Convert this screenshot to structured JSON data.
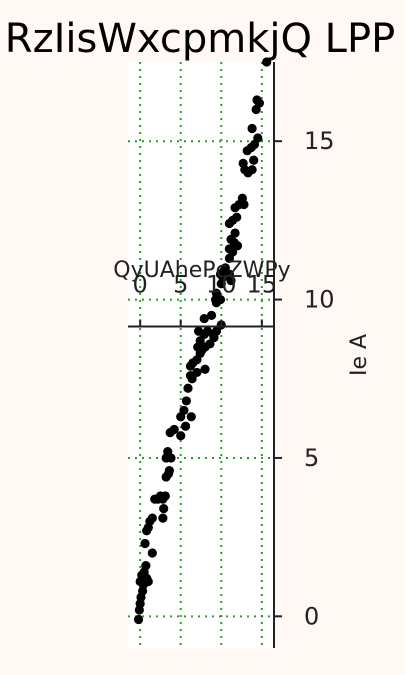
{
  "chart_data": {
    "type": "scatter",
    "title": "RzIisWxcpmkjQ LPP",
    "xlabel": "QyUAhePcZWPy",
    "ylabel": "Ie A",
    "xlim": [
      -1.5,
      16.5
    ],
    "ylim": [
      -1.0,
      17.5
    ],
    "x_ticks": [
      0,
      5,
      10,
      15
    ],
    "y_ticks": [
      0,
      5,
      10,
      15
    ],
    "x_tick_labels": [
      "0",
      "5",
      "10",
      "15"
    ],
    "y_tick_labels": [
      "0",
      "5",
      "10",
      "15"
    ],
    "x_axis_position": "top-inside",
    "y_axis_position": "right",
    "x_axis_at_y": 9.15,
    "grid": true,
    "grid_color": "#2a9d2a",
    "marker_color": "#000000",
    "background": "#fff8f5",
    "points": [
      [
        -0.2,
        -0.1
      ],
      [
        -0.1,
        0.2
      ],
      [
        0.0,
        0.4
      ],
      [
        0.1,
        0.6
      ],
      [
        0.3,
        0.8
      ],
      [
        0.0,
        1.1
      ],
      [
        0.4,
        1.0
      ],
      [
        0.8,
        1.2
      ],
      [
        0.5,
        1.4
      ],
      [
        0.2,
        1.3
      ],
      [
        0.7,
        1.6
      ],
      [
        1.0,
        1.1
      ],
      [
        0.6,
        2.3
      ],
      [
        1.5,
        2.0
      ],
      [
        1.0,
        2.8
      ],
      [
        0.8,
        2.7
      ],
      [
        1.2,
        3.0
      ],
      [
        1.5,
        3.1
      ],
      [
        1.8,
        3.7
      ],
      [
        2.2,
        3.7
      ],
      [
        2.8,
        3.7
      ],
      [
        2.5,
        3.8
      ],
      [
        2.9,
        3.4
      ],
      [
        2.8,
        3.1
      ],
      [
        3.1,
        3.8
      ],
      [
        3.2,
        4.4
      ],
      [
        3.5,
        4.5
      ],
      [
        3.6,
        4.6
      ],
      [
        3.2,
        5.0
      ],
      [
        3.8,
        5.0
      ],
      [
        3.4,
        5.2
      ],
      [
        3.7,
        5.8
      ],
      [
        4.2,
        5.9
      ],
      [
        5.0,
        5.7
      ],
      [
        5.6,
        6.0
      ],
      [
        5.0,
        6.3
      ],
      [
        5.4,
        6.5
      ],
      [
        5.7,
        6.8
      ],
      [
        6.3,
        6.3
      ],
      [
        5.9,
        7.2
      ],
      [
        6.2,
        7.6
      ],
      [
        6.4,
        7.5
      ],
      [
        7.0,
        7.7
      ],
      [
        6.2,
        7.9
      ],
      [
        6.5,
        8.0
      ],
      [
        7.0,
        8.1
      ],
      [
        7.4,
        8.3
      ],
      [
        7.1,
        8.5
      ],
      [
        7.6,
        8.4
      ],
      [
        8.0,
        7.8
      ],
      [
        7.4,
        8.7
      ],
      [
        8.0,
        8.5
      ],
      [
        7.9,
        8.9
      ],
      [
        7.2,
        9.0
      ],
      [
        8.6,
        8.6
      ],
      [
        9.1,
        8.8
      ],
      [
        9.0,
        8.9
      ],
      [
        9.4,
        9.0
      ],
      [
        10.0,
        9.2
      ],
      [
        8.3,
        9.0
      ],
      [
        7.9,
        9.4
      ],
      [
        8.8,
        9.5
      ],
      [
        9.4,
        9.9
      ],
      [
        9.3,
        10.0
      ],
      [
        9.9,
        10.0
      ],
      [
        9.4,
        10.2
      ],
      [
        10.0,
        10.5
      ],
      [
        10.2,
        10.7
      ],
      [
        9.9,
        10.8
      ],
      [
        10.3,
        10.9
      ],
      [
        11.0,
        10.8
      ],
      [
        10.5,
        11.0
      ],
      [
        11.2,
        10.6
      ],
      [
        11.0,
        11.3
      ],
      [
        11.4,
        11.5
      ],
      [
        11.0,
        11.6
      ],
      [
        11.6,
        11.8
      ],
      [
        11.2,
        11.9
      ],
      [
        11.7,
        12.1
      ],
      [
        12.0,
        11.7
      ],
      [
        11.0,
        12.4
      ],
      [
        11.4,
        12.5
      ],
      [
        11.9,
        12.6
      ],
      [
        11.7,
        12.9
      ],
      [
        12.2,
        13.0
      ],
      [
        12.6,
        13.2
      ],
      [
        12.8,
        13.0
      ],
      [
        12.9,
        14.1
      ],
      [
        13.3,
        14.0
      ],
      [
        12.7,
        14.3
      ],
      [
        13.2,
        14.7
      ],
      [
        13.8,
        14.1
      ],
      [
        14.0,
        14.4
      ],
      [
        13.7,
        14.8
      ],
      [
        14.1,
        14.9
      ],
      [
        14.5,
        15.1
      ],
      [
        13.8,
        15.4
      ],
      [
        14.3,
        16.0
      ],
      [
        14.4,
        16.3
      ],
      [
        14.7,
        16.2
      ],
      [
        15.6,
        17.5
      ]
    ]
  }
}
